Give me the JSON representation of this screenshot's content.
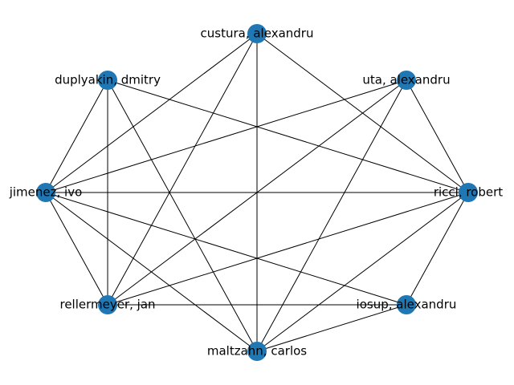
{
  "graph": {
    "node_color": "#1f77b4",
    "edge_color": "#000000",
    "nodes": [
      {
        "id": "ricci",
        "label": "ricci, robert"
      },
      {
        "id": "uta",
        "label": "uta, alexandru"
      },
      {
        "id": "custura",
        "label": "custura, alexandru"
      },
      {
        "id": "duplyakin",
        "label": "duplyakin, dmitry"
      },
      {
        "id": "jimenez",
        "label": "jimenez, ivo"
      },
      {
        "id": "rellermeyer",
        "label": "rellermeyer, jan"
      },
      {
        "id": "maltzahn",
        "label": "maltzahn, carlos"
      },
      {
        "id": "iosup",
        "label": "iosup, alexandru"
      }
    ],
    "edges": [
      [
        "custura",
        "jimenez"
      ],
      [
        "custura",
        "rellermeyer"
      ],
      [
        "custura",
        "maltzahn"
      ],
      [
        "custura",
        "ricci"
      ],
      [
        "duplyakin",
        "jimenez"
      ],
      [
        "duplyakin",
        "rellermeyer"
      ],
      [
        "duplyakin",
        "maltzahn"
      ],
      [
        "duplyakin",
        "ricci"
      ],
      [
        "uta",
        "jimenez"
      ],
      [
        "uta",
        "rellermeyer"
      ],
      [
        "uta",
        "maltzahn"
      ],
      [
        "uta",
        "ricci"
      ],
      [
        "jimenez",
        "ricci"
      ],
      [
        "jimenez",
        "rellermeyer"
      ],
      [
        "jimenez",
        "maltzahn"
      ],
      [
        "jimenez",
        "iosup"
      ],
      [
        "rellermeyer",
        "ricci"
      ],
      [
        "rellermeyer",
        "iosup"
      ],
      [
        "maltzahn",
        "ricci"
      ],
      [
        "maltzahn",
        "iosup"
      ],
      [
        "ricci",
        "iosup"
      ]
    ]
  }
}
